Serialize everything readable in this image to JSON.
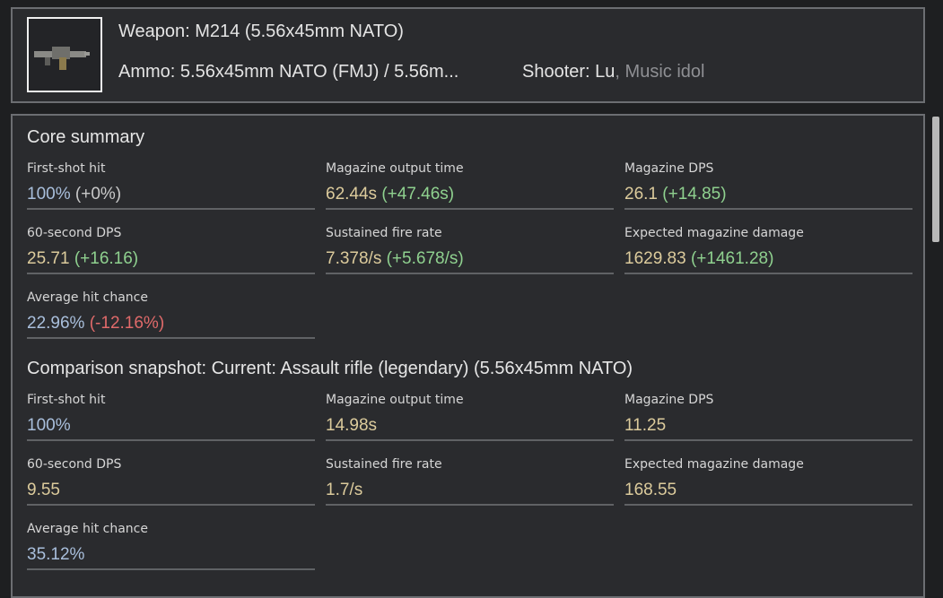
{
  "header": {
    "weapon": "Weapon: M214 (5.56x45mm NATO)",
    "ammo": "Ammo: 5.56x45mm NATO (FMJ) / 5.56m...",
    "shooter": "Shooter: Lu",
    "shooter_role": ", Music idol"
  },
  "sections": [
    {
      "title": "Core summary",
      "stats": [
        {
          "label": "First-shot hit",
          "value": "100%",
          "value_color": "#a9bfdc",
          "delta": "(+0%)",
          "delta_color": "#c9c9c9"
        },
        {
          "label": "Magazine output time",
          "value": "62.44s",
          "value_color": "#dccb9c",
          "delta": "(+47.46s)",
          "delta_color": "#8fd18f"
        },
        {
          "label": "Magazine DPS",
          "value": "26.1",
          "value_color": "#dccb9c",
          "delta": "(+14.85)",
          "delta_color": "#8fd18f"
        },
        {
          "label": "60-second DPS",
          "value": "25.71",
          "value_color": "#dccb9c",
          "delta": "(+16.16)",
          "delta_color": "#8fd18f"
        },
        {
          "label": "Sustained fire rate",
          "value": "7.378/s",
          "value_color": "#dccb9c",
          "delta": "(+5.678/s)",
          "delta_color": "#8fd18f"
        },
        {
          "label": "Expected magazine damage",
          "value": "1629.83",
          "value_color": "#dccb9c",
          "delta": "(+1461.28)",
          "delta_color": "#8fd18f"
        },
        {
          "label": "Average hit chance",
          "value": "22.96%",
          "value_color": "#a9bfdc",
          "delta": "(-12.16%)",
          "delta_color": "#e06a6a"
        }
      ]
    },
    {
      "title": "Comparison snapshot: Current: Assault rifle (legendary) (5.56x45mm NATO)",
      "stats": [
        {
          "label": "First-shot hit",
          "value": "100%",
          "value_color": "#a9bfdc"
        },
        {
          "label": "Magazine output time",
          "value": "14.98s",
          "value_color": "#dccb9c"
        },
        {
          "label": "Magazine DPS",
          "value": "11.25",
          "value_color": "#dccb9c"
        },
        {
          "label": "60-second DPS",
          "value": "9.55",
          "value_color": "#dccb9c"
        },
        {
          "label": "Sustained fire rate",
          "value": "1.7/s",
          "value_color": "#dccb9c"
        },
        {
          "label": "Expected magazine damage",
          "value": "168.55",
          "value_color": "#dccb9c"
        },
        {
          "label": "Average hit chance",
          "value": "35.12%",
          "value_color": "#a9bfdc"
        }
      ]
    }
  ]
}
